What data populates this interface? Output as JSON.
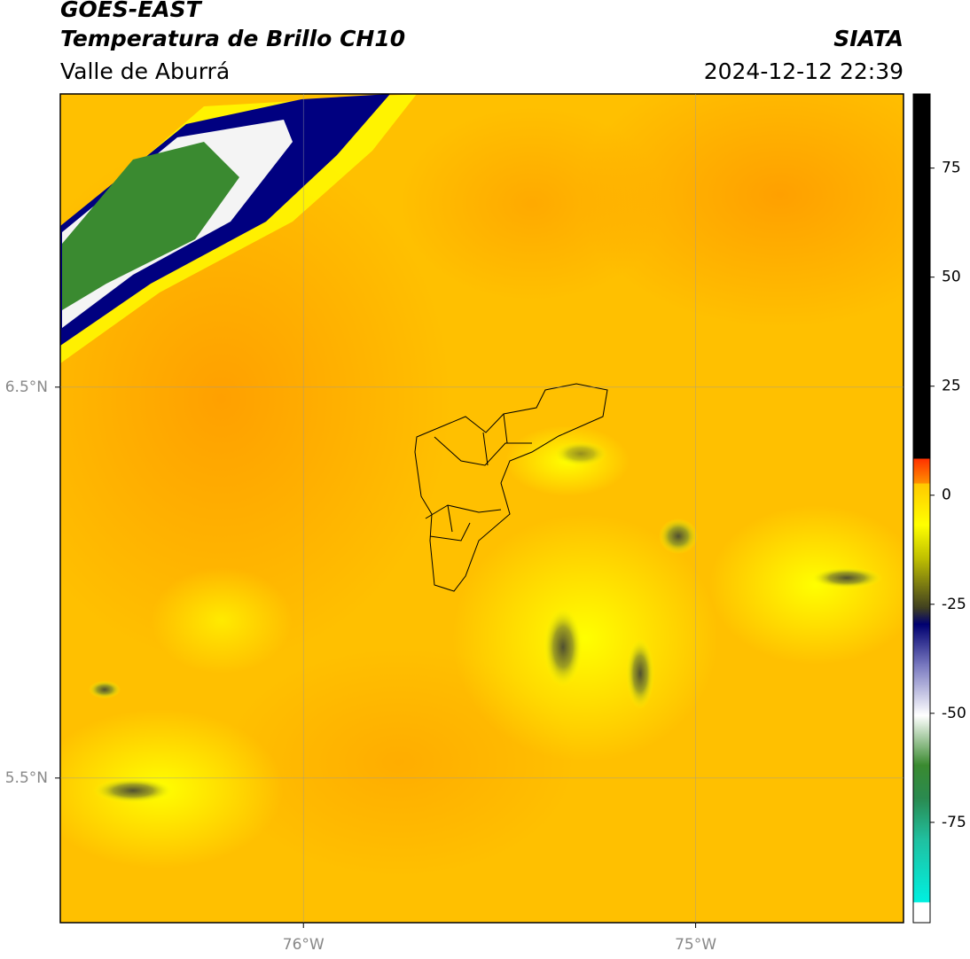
{
  "header": {
    "title": "GOES-EAST",
    "subtitle": "Temperatura de Brillo CH10",
    "region": "Valle de Aburrá",
    "source": "SIATA",
    "datetime": "2024-12-12 22:39"
  },
  "map": {
    "xlim": [
      -76.62,
      -74.47
    ],
    "ylim": [
      5.13,
      7.25
    ],
    "xticks": [
      {
        "value": -76,
        "label": "76°W"
      },
      {
        "value": -75,
        "label": "75°W"
      }
    ],
    "yticks": [
      {
        "value": 5.5,
        "label": "5.5°N"
      },
      {
        "value": 6.5,
        "label": "6.5°N"
      }
    ],
    "grid": true
  },
  "colorbar": {
    "lim": [
      -98,
      92
    ],
    "ticks": [
      -75,
      -50,
      -25,
      0,
      25,
      50,
      75
    ]
  }
}
